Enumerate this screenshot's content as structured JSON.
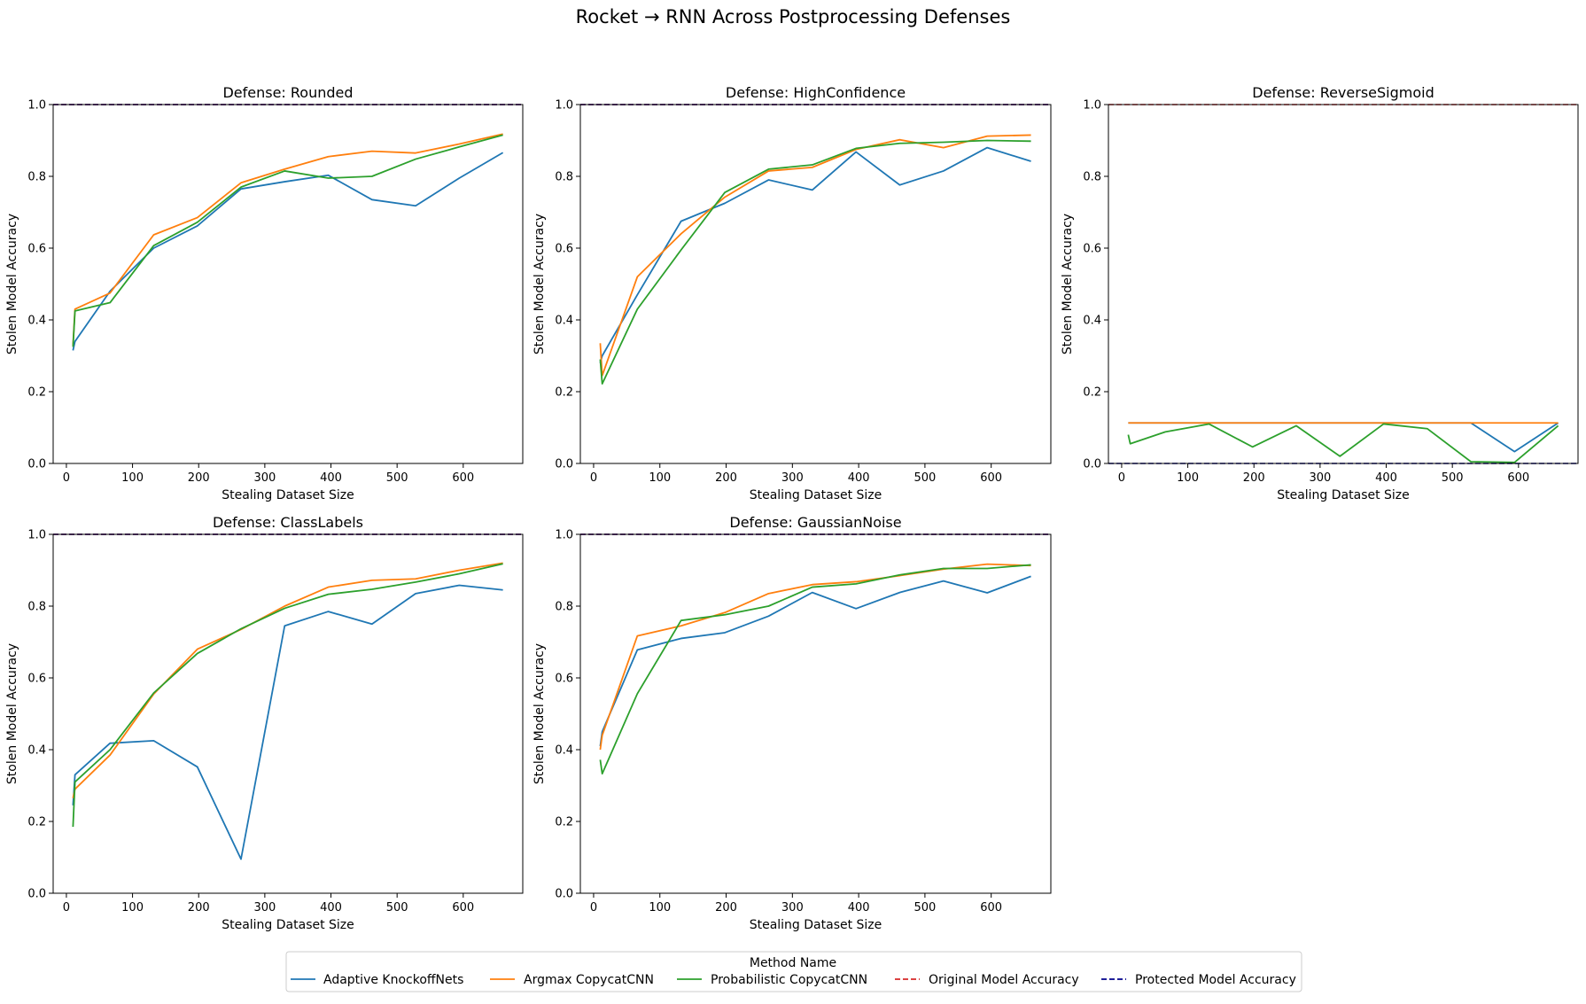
{
  "figure": {
    "title": "Rocket → RNN Across Postprocessing Defenses",
    "legend_title": "Method Name",
    "legend_items": [
      {
        "label": "Adaptive KnockoffNets",
        "color": "#1f77b4",
        "dashed": false
      },
      {
        "label": "Argmax CopycatCNN",
        "color": "#ff7f0e",
        "dashed": false
      },
      {
        "label": "Probabilistic CopycatCNN",
        "color": "#2ca02c",
        "dashed": false
      },
      {
        "label": "Original Model Accuracy",
        "color": "#d62728",
        "dashed": true
      },
      {
        "label": "Protected Model Accuracy",
        "color": "#00008b",
        "dashed": true
      }
    ],
    "legend_placement": "bottom-center"
  },
  "chart_data": [
    {
      "type": "line",
      "title": "Defense: Rounded",
      "xlabel": "Stealing Dataset Size",
      "ylabel": "Stolen Model Accuracy",
      "xlim": [
        -20,
        690
      ],
      "ylim": [
        0,
        1.0
      ],
      "xticks": [
        0,
        100,
        200,
        300,
        400,
        500,
        600
      ],
      "yticks": [
        0.0,
        0.2,
        0.4,
        0.6,
        0.8,
        1.0
      ],
      "x": [
        10,
        13,
        66,
        132,
        198,
        264,
        330,
        396,
        462,
        528,
        594,
        660
      ],
      "series": [
        {
          "name": "Adaptive KnockoffNets",
          "color": "#1f77b4",
          "values": [
            0.315,
            0.34,
            0.48,
            0.6,
            0.662,
            0.765,
            0.785,
            0.803,
            0.735,
            0.718,
            0.795,
            0.866
          ]
        },
        {
          "name": "Argmax CopycatCNN",
          "color": "#ff7f0e",
          "values": [
            0.33,
            0.43,
            0.475,
            0.637,
            0.685,
            0.782,
            0.82,
            0.855,
            0.87,
            0.865,
            0.89,
            0.918
          ]
        },
        {
          "name": "Probabilistic CopycatCNN",
          "color": "#2ca02c",
          "values": [
            0.325,
            0.425,
            0.448,
            0.607,
            0.672,
            0.77,
            0.815,
            0.795,
            0.8,
            0.848,
            0.882,
            0.915
          ]
        }
      ],
      "hlines": [
        {
          "name": "Original Model Accuracy",
          "color": "#d62728",
          "dashed": true,
          "value": 1.0
        },
        {
          "name": "Protected Model Accuracy",
          "color": "#00008b",
          "dashed": true,
          "value": 1.0
        }
      ]
    },
    {
      "type": "line",
      "title": "Defense: HighConfidence",
      "xlabel": "Stealing Dataset Size",
      "ylabel": "Stolen Model Accuracy",
      "xlim": [
        -20,
        690
      ],
      "ylim": [
        0,
        1.0
      ],
      "xticks": [
        0,
        100,
        200,
        300,
        400,
        500,
        600
      ],
      "yticks": [
        0.0,
        0.2,
        0.4,
        0.6,
        0.8,
        1.0
      ],
      "x": [
        10,
        13,
        66,
        132,
        198,
        264,
        330,
        396,
        462,
        528,
        594,
        660
      ],
      "series": [
        {
          "name": "Adaptive KnockoffNets",
          "color": "#1f77b4",
          "values": [
            0.28,
            0.3,
            0.47,
            0.675,
            0.725,
            0.79,
            0.762,
            0.868,
            0.776,
            0.815,
            0.88,
            0.842
          ]
        },
        {
          "name": "Argmax CopycatCNN",
          "color": "#ff7f0e",
          "values": [
            0.335,
            0.245,
            0.52,
            0.64,
            0.742,
            0.815,
            0.825,
            0.875,
            0.902,
            0.88,
            0.912,
            0.915
          ]
        },
        {
          "name": "Probabilistic CopycatCNN",
          "color": "#2ca02c",
          "values": [
            0.29,
            0.222,
            0.43,
            0.595,
            0.755,
            0.82,
            0.832,
            0.878,
            0.892,
            0.895,
            0.9,
            0.898
          ]
        }
      ],
      "hlines": [
        {
          "name": "Original Model Accuracy",
          "color": "#d62728",
          "dashed": true,
          "value": 1.0
        },
        {
          "name": "Protected Model Accuracy",
          "color": "#00008b",
          "dashed": true,
          "value": 1.0
        }
      ]
    },
    {
      "type": "line",
      "title": "Defense: ReverseSigmoid",
      "xlabel": "Stealing Dataset Size",
      "ylabel": "Stolen Model Accuracy",
      "xlim": [
        -20,
        690
      ],
      "ylim": [
        0,
        1.0
      ],
      "xticks": [
        0,
        100,
        200,
        300,
        400,
        500,
        600
      ],
      "yticks": [
        0.0,
        0.2,
        0.4,
        0.6,
        0.8,
        1.0
      ],
      "x": [
        10,
        13,
        66,
        132,
        198,
        264,
        330,
        396,
        462,
        528,
        594,
        660
      ],
      "series": [
        {
          "name": "Adaptive KnockoffNets",
          "color": "#1f77b4",
          "values": [
            0.113,
            0.113,
            0.113,
            0.113,
            0.113,
            0.113,
            0.113,
            0.113,
            0.113,
            0.113,
            0.033,
            0.113
          ]
        },
        {
          "name": "Argmax CopycatCNN",
          "color": "#ff7f0e",
          "values": [
            0.113,
            0.113,
            0.113,
            0.113,
            0.113,
            0.113,
            0.113,
            0.113,
            0.113,
            0.113,
            0.113,
            0.113
          ]
        },
        {
          "name": "Probabilistic CopycatCNN",
          "color": "#2ca02c",
          "values": [
            0.08,
            0.055,
            0.088,
            0.11,
            0.046,
            0.105,
            0.02,
            0.11,
            0.097,
            0.005,
            0.003,
            0.105
          ]
        }
      ],
      "hlines": [
        {
          "name": "Original Model Accuracy",
          "color": "#d62728",
          "dashed": true,
          "value": 1.0
        },
        {
          "name": "Protected Model Accuracy",
          "color": "#00008b",
          "dashed": true,
          "value": 0.0
        }
      ]
    },
    {
      "type": "line",
      "title": "Defense: ClassLabels",
      "xlabel": "Stealing Dataset Size",
      "ylabel": "Stolen Model Accuracy",
      "xlim": [
        -20,
        690
      ],
      "ylim": [
        0,
        1.0
      ],
      "xticks": [
        0,
        100,
        200,
        300,
        400,
        500,
        600
      ],
      "yticks": [
        0.0,
        0.2,
        0.4,
        0.6,
        0.8,
        1.0
      ],
      "x": [
        10,
        13,
        66,
        132,
        198,
        264,
        330,
        396,
        462,
        528,
        594,
        660
      ],
      "series": [
        {
          "name": "Adaptive KnockoffNets",
          "color": "#1f77b4",
          "values": [
            0.245,
            0.33,
            0.418,
            0.425,
            0.352,
            0.095,
            0.745,
            0.785,
            0.75,
            0.835,
            0.858,
            0.845
          ]
        },
        {
          "name": "Argmax CopycatCNN",
          "color": "#ff7f0e",
          "values": [
            0.265,
            0.29,
            0.385,
            0.555,
            0.68,
            0.735,
            0.8,
            0.853,
            0.872,
            0.876,
            0.9,
            0.92
          ]
        },
        {
          "name": "Probabilistic CopycatCNN",
          "color": "#2ca02c",
          "values": [
            0.185,
            0.31,
            0.4,
            0.558,
            0.668,
            0.737,
            0.794,
            0.833,
            0.847,
            0.867,
            0.89,
            0.918
          ]
        }
      ],
      "hlines": [
        {
          "name": "Original Model Accuracy",
          "color": "#d62728",
          "dashed": true,
          "value": 1.0
        },
        {
          "name": "Protected Model Accuracy",
          "color": "#00008b",
          "dashed": true,
          "value": 1.0
        }
      ]
    },
    {
      "type": "line",
      "title": "Defense: GaussianNoise",
      "xlabel": "Stealing Dataset Size",
      "ylabel": "Stolen Model Accuracy",
      "xlim": [
        -20,
        690
      ],
      "ylim": [
        0,
        1.0
      ],
      "xticks": [
        0,
        100,
        200,
        300,
        400,
        500,
        600
      ],
      "yticks": [
        0.0,
        0.2,
        0.4,
        0.6,
        0.8,
        1.0
      ],
      "x": [
        10,
        13,
        66,
        132,
        198,
        264,
        330,
        396,
        462,
        528,
        594,
        660
      ],
      "series": [
        {
          "name": "Adaptive KnockoffNets",
          "color": "#1f77b4",
          "values": [
            0.41,
            0.45,
            0.678,
            0.71,
            0.726,
            0.772,
            0.838,
            0.793,
            0.838,
            0.87,
            0.837,
            0.883
          ]
        },
        {
          "name": "Argmax CopycatCNN",
          "color": "#ff7f0e",
          "values": [
            0.4,
            0.44,
            0.717,
            0.745,
            0.782,
            0.835,
            0.86,
            0.868,
            0.885,
            0.903,
            0.917,
            0.913
          ]
        },
        {
          "name": "Probabilistic CopycatCNN",
          "color": "#2ca02c",
          "values": [
            0.372,
            0.333,
            0.556,
            0.76,
            0.776,
            0.8,
            0.853,
            0.862,
            0.887,
            0.905,
            0.905,
            0.915
          ]
        }
      ],
      "hlines": [
        {
          "name": "Original Model Accuracy",
          "color": "#d62728",
          "dashed": true,
          "value": 1.0
        },
        {
          "name": "Protected Model Accuracy",
          "color": "#00008b",
          "dashed": true,
          "value": 1.0
        }
      ]
    }
  ]
}
